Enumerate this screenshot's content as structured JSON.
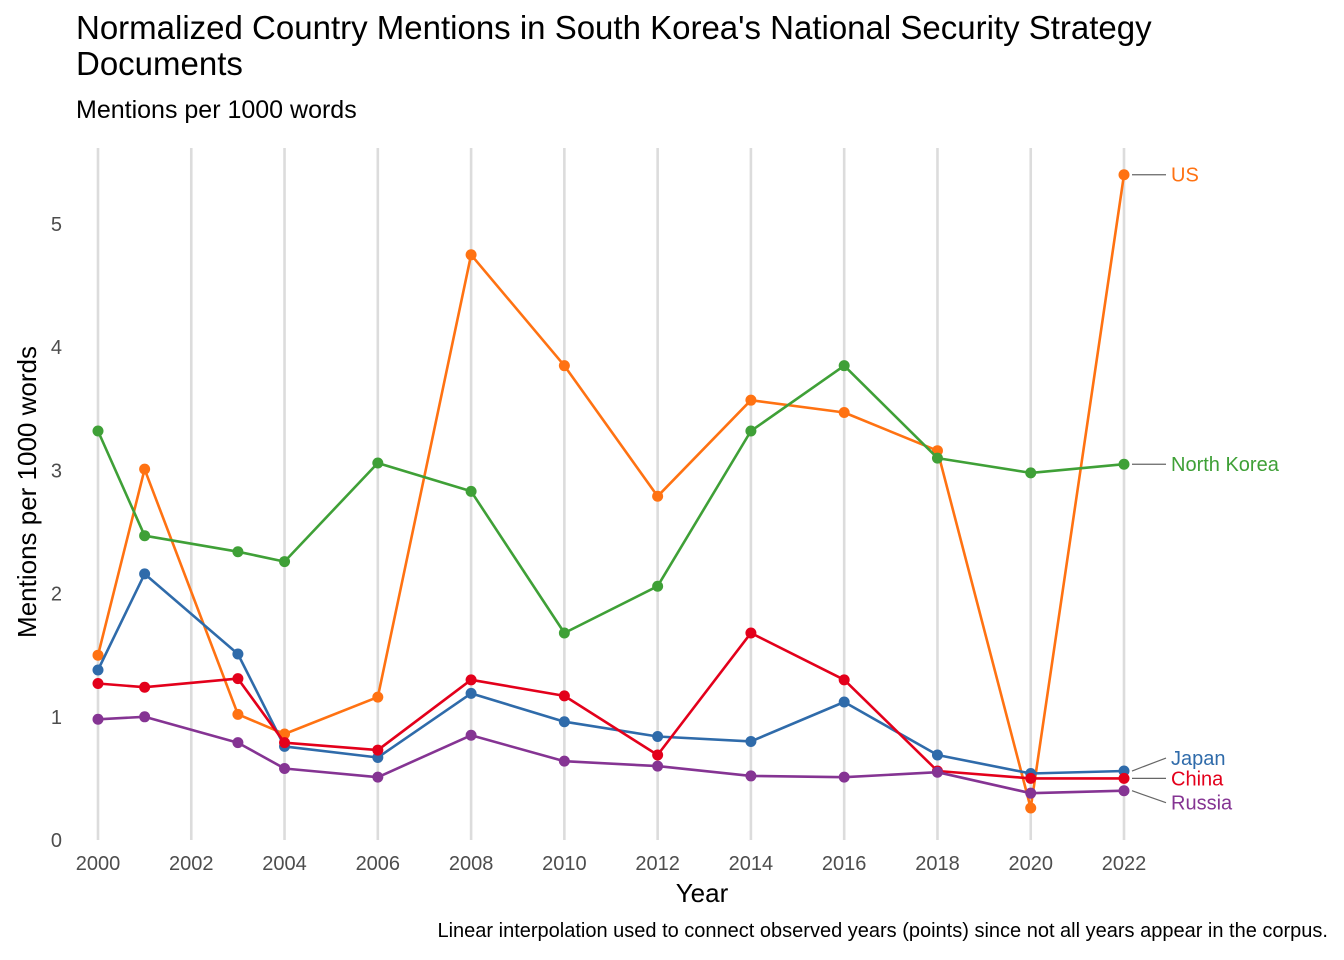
{
  "chart_data": {
    "type": "line",
    "title": "Normalized Country Mentions in South Korea's National Security Strategy Documents",
    "subtitle": "Mentions per 1000 words",
    "xlabel": "Year",
    "ylabel": "Mentions per 1000 words",
    "caption": "Linear interpolation used to connect observed years (points) since not all years appear in the corpus.",
    "xlim": [
      2000,
      2022
    ],
    "ylim": [
      0,
      5.5
    ],
    "x_ticks": [
      2000,
      2002,
      2004,
      2006,
      2008,
      2010,
      2012,
      2014,
      2016,
      2018,
      2020,
      2022
    ],
    "y_ticks": [
      0,
      1,
      2,
      3,
      4,
      5
    ],
    "grid": "vertical major lines",
    "x": [
      2000,
      2001,
      2003,
      2004,
      2006,
      2008,
      2010,
      2012,
      2014,
      2016,
      2018,
      2020,
      2022
    ],
    "series": [
      {
        "name": "US",
        "color": "#FF7212",
        "values": [
          1.5,
          3.01,
          1.02,
          0.86,
          1.16,
          4.75,
          3.85,
          2.79,
          3.57,
          3.47,
          3.16,
          0.26,
          5.4
        ]
      },
      {
        "name": "North Korea",
        "color": "#3FA037",
        "values": [
          3.32,
          2.47,
          2.34,
          2.26,
          3.06,
          2.83,
          1.68,
          2.06,
          3.32,
          3.85,
          3.1,
          2.98,
          3.05
        ]
      },
      {
        "name": "Japan",
        "color": "#2F6BAA",
        "values": [
          1.38,
          2.16,
          1.51,
          0.76,
          0.67,
          1.19,
          0.96,
          0.84,
          0.8,
          1.12,
          0.69,
          0.54,
          0.56
        ]
      },
      {
        "name": "China",
        "color": "#E3001B",
        "values": [
          1.27,
          1.24,
          1.31,
          0.79,
          0.73,
          1.3,
          1.17,
          0.69,
          1.68,
          1.3,
          0.56,
          0.5,
          0.5
        ]
      },
      {
        "name": "Russia",
        "color": "#853493",
        "values": [
          0.98,
          1.0,
          0.79,
          0.58,
          0.51,
          0.85,
          0.64,
          0.6,
          0.52,
          0.51,
          0.55,
          0.38,
          0.4
        ]
      }
    ]
  }
}
